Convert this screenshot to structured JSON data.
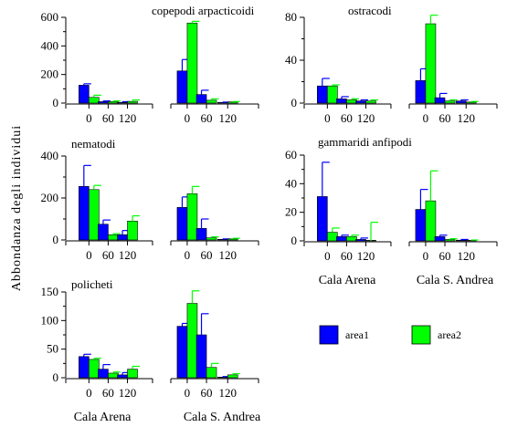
{
  "figure": {
    "ylabel": "Abbondanza degli individui",
    "depth_ticks": [
      "0",
      "60",
      "120"
    ],
    "sites": [
      "Cala Arena",
      "Cala S. Andrea"
    ],
    "legend": [
      {
        "label": "area1",
        "color": "#0000ff"
      },
      {
        "label": "area2",
        "color": "#00ff00"
      }
    ],
    "colors": {
      "area1": "#0000ff",
      "area2": "#00ff00",
      "bar_border": "#000000"
    }
  },
  "chart_data": [
    {
      "type": "bar",
      "title": "copepodi arpacticoidi",
      "categories": [
        "Cala Arena 0",
        "Cala Arena 60",
        "Cala Arena 120",
        "Cala S. Andrea 0",
        "Cala S. Andrea 60",
        "Cala S. Andrea 120"
      ],
      "series": [
        {
          "name": "area1",
          "values": [
            125,
            10,
            5,
            225,
            60,
            5
          ],
          "error": [
            10,
            5,
            5,
            80,
            30,
            2
          ]
        },
        {
          "name": "area2",
          "values": [
            40,
            10,
            12,
            560,
            20,
            8
          ],
          "error": [
            15,
            5,
            10,
            12,
            10,
            3
          ]
        }
      ],
      "ylim": [
        0,
        600
      ],
      "yticks": [
        "0",
        "200",
        "400",
        "600"
      ]
    },
    {
      "type": "bar",
      "title": "ostracodi",
      "categories": [
        "Cala Arena 0",
        "Cala Arena 60",
        "Cala Arena 120",
        "Cala S. Andrea 0",
        "Cala S. Andrea 60",
        "Cala S. Andrea 120"
      ],
      "series": [
        {
          "name": "area1",
          "values": [
            16,
            4,
            2,
            21,
            5,
            2
          ],
          "error": [
            7,
            2,
            1,
            11,
            4,
            1
          ]
        },
        {
          "name": "area2",
          "values": [
            16,
            3,
            2,
            74,
            2,
            1
          ],
          "error": [
            1,
            1,
            1,
            8,
            1,
            0.5
          ]
        }
      ],
      "ylim": [
        0,
        80
      ],
      "yticks": [
        "0",
        "40",
        "80"
      ]
    },
    {
      "type": "bar",
      "title": "nematodi",
      "categories": [
        "Cala Arena 0",
        "Cala Arena 60",
        "Cala Arena 120",
        "Cala S. Andrea 0",
        "Cala S. Andrea 60",
        "Cala S. Andrea 120"
      ],
      "series": [
        {
          "name": "area1",
          "values": [
            255,
            75,
            25,
            155,
            55,
            3
          ],
          "error": [
            100,
            20,
            20,
            50,
            45,
            2
          ]
        },
        {
          "name": "area2",
          "values": [
            240,
            25,
            90,
            220,
            10,
            5
          ],
          "error": [
            20,
            5,
            25,
            35,
            5,
            3
          ]
        }
      ],
      "ylim": [
        0,
        400
      ],
      "yticks": [
        "0",
        "200",
        "400"
      ]
    },
    {
      "type": "bar",
      "title": "gammaridi anfipodi",
      "categories": [
        "Cala Arena 0",
        "Cala Arena 60",
        "Cala Arena 120",
        "Cala S. Andrea 0",
        "Cala S. Andrea 60",
        "Cala S. Andrea 120"
      ],
      "series": [
        {
          "name": "area1",
          "values": [
            31,
            3,
            1,
            22,
            3,
            0.5
          ],
          "error": [
            24,
            1,
            1,
            14,
            1,
            0.5
          ]
        },
        {
          "name": "area2",
          "values": [
            6,
            3,
            0,
            28,
            1,
            0.3
          ],
          "error": [
            3,
            1,
            13,
            21,
            0.5,
            0.3
          ]
        }
      ],
      "ylim": [
        0,
        60
      ],
      "yticks": [
        "0",
        "20",
        "40",
        "60"
      ]
    },
    {
      "type": "bar",
      "title": "policheti",
      "categories": [
        "Cala Arena 0",
        "Cala Arena 60",
        "Cala Arena 120",
        "Cala S. Andrea 0",
        "Cala S. Andrea 60",
        "Cala S. Andrea 120"
      ],
      "series": [
        {
          "name": "area1",
          "values": [
            37,
            15,
            5,
            90,
            75,
            1
          ],
          "error": [
            4,
            8,
            4,
            5,
            37,
            1
          ]
        },
        {
          "name": "area2",
          "values": [
            32,
            8,
            15,
            130,
            18,
            5
          ],
          "error": [
            2,
            2,
            5,
            22,
            7,
            2
          ]
        }
      ],
      "ylim": [
        0,
        150
      ],
      "yticks": [
        "0",
        "50",
        "100",
        "150"
      ]
    }
  ]
}
